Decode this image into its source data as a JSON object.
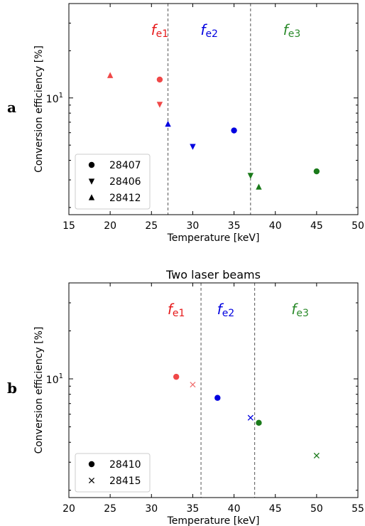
{
  "chart_data": [
    {
      "type": "scatter",
      "panel_label": "a",
      "title": "",
      "xlabel": "Temperature [keV]",
      "ylabel": "Conversion efficiency [%]",
      "xlim": [
        15,
        50
      ],
      "xticks": [
        15,
        20,
        25,
        30,
        35,
        40,
        45,
        50
      ],
      "ylim": [
        1.8,
        40
      ],
      "yscale": "log",
      "ytick_labels": [
        {
          "value": 10,
          "base": "10",
          "exp": "1"
        }
      ],
      "vlines": [
        27,
        37
      ],
      "regions": [
        {
          "label": "f",
          "sub": "e1",
          "x": 26,
          "color": "#e6191a"
        },
        {
          "label": "f",
          "sub": "e2",
          "x": 32,
          "color": "#0000e0"
        },
        {
          "label": "f",
          "sub": "e3",
          "x": 42,
          "color": "#2a8a2a"
        }
      ],
      "legend": {
        "location": "lower-left",
        "entries": [
          {
            "label": "28407",
            "marker": "circle"
          },
          {
            "label": "28406",
            "marker": "triangle-down"
          },
          {
            "label": "28412",
            "marker": "triangle-up"
          }
        ]
      },
      "series": [
        {
          "shot": "28407",
          "marker": "circle",
          "points": [
            {
              "x": 26,
              "y": 13.1,
              "color": "#f04848"
            },
            {
              "x": 35,
              "y": 6.2,
              "color": "#0000e0"
            },
            {
              "x": 45,
              "y": 3.4,
              "color": "#1a7a1a"
            }
          ]
        },
        {
          "shot": "28406",
          "marker": "triangle-down",
          "points": [
            {
              "x": 26,
              "y": 9.1,
              "color": "#f04848"
            },
            {
              "x": 30,
              "y": 4.9,
              "color": "#0000e0"
            },
            {
              "x": 37,
              "y": 3.2,
              "color": "#1a7a1a"
            }
          ]
        },
        {
          "shot": "28412",
          "marker": "triangle-up",
          "points": [
            {
              "x": 20,
              "y": 13.9,
              "color": "#f04848"
            },
            {
              "x": 27,
              "y": 6.8,
              "color": "#0000e0"
            },
            {
              "x": 38,
              "y": 2.7,
              "color": "#1a7a1a"
            }
          ]
        }
      ]
    },
    {
      "type": "scatter",
      "panel_label": "b",
      "title": "Two laser beams",
      "xlabel": "Temperature [keV]",
      "ylabel": "Conversion efficiency [%]",
      "xlim": [
        20,
        55
      ],
      "xticks": [
        20,
        25,
        30,
        35,
        40,
        45,
        50,
        55
      ],
      "ylim": [
        1.8,
        40
      ],
      "yscale": "log",
      "ytick_labels": [
        {
          "value": 10,
          "base": "10",
          "exp": "1"
        }
      ],
      "vlines": [
        36,
        42.5
      ],
      "regions": [
        {
          "label": "f",
          "sub": "e1",
          "x": 33,
          "color": "#e6191a"
        },
        {
          "label": "f",
          "sub": "e2",
          "x": 39,
          "color": "#0000e0"
        },
        {
          "label": "f",
          "sub": "e3",
          "x": 48,
          "color": "#2a8a2a"
        }
      ],
      "legend": {
        "location": "lower-left",
        "entries": [
          {
            "label": "28410",
            "marker": "circle"
          },
          {
            "label": "28415",
            "marker": "x"
          }
        ]
      },
      "series": [
        {
          "shot": "28410",
          "marker": "circle",
          "points": [
            {
              "x": 33,
              "y": 10.3,
              "color": "#f04848"
            },
            {
              "x": 38,
              "y": 7.6,
              "color": "#0000e0"
            },
            {
              "x": 43,
              "y": 5.3,
              "color": "#1a7a1a"
            }
          ]
        },
        {
          "shot": "28415",
          "marker": "x",
          "points": [
            {
              "x": 35,
              "y": 9.2,
              "color": "#f07070"
            },
            {
              "x": 42,
              "y": 5.7,
              "color": "#0000e0"
            },
            {
              "x": 50,
              "y": 3.3,
              "color": "#1a7a1a"
            }
          ]
        }
      ]
    }
  ]
}
